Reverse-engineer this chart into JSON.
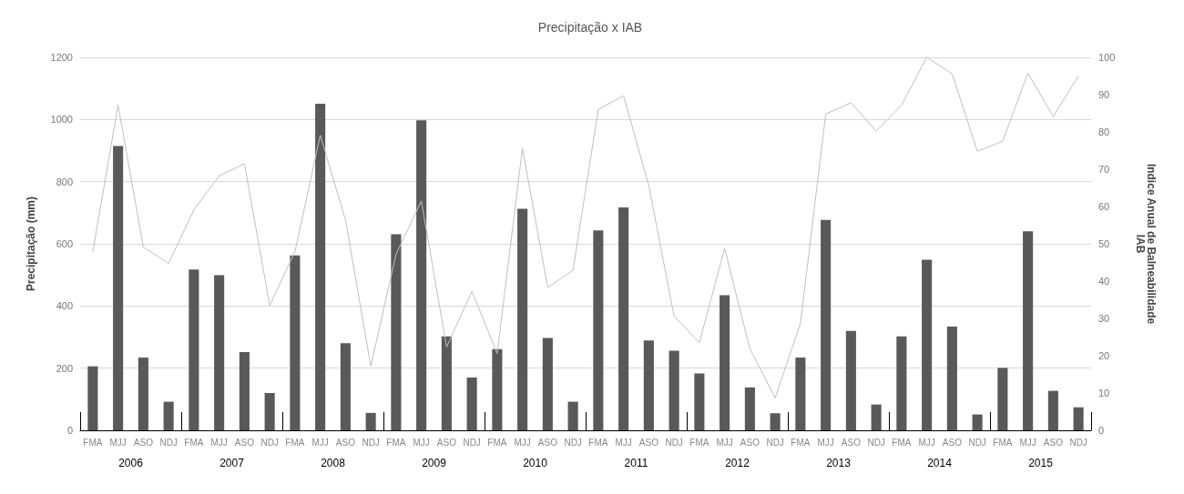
{
  "chart_data": {
    "type": "bar",
    "title": "Precipitação x IAB",
    "ylabel": "Precipitação (mm)",
    "y2label": "Indice Anual de Balneabilidade\nIAB",
    "categories": [
      "FMA",
      "MJJ",
      "ASO",
      "NDJ",
      "FMA",
      "MJJ",
      "ASO",
      "NDJ",
      "FMA",
      "MJJ",
      "ASO",
      "NDJ",
      "FMA",
      "MJJ",
      "ASO",
      "NDJ",
      "FMA",
      "MJJ",
      "ASO",
      "NDJ",
      "FMA",
      "MJJ",
      "ASO",
      "NDJ",
      "FMA",
      "MJJ",
      "ASO",
      "NDJ",
      "FMA",
      "MJJ",
      "ASO",
      "NDJ",
      "FMA",
      "MJJ",
      "ASO",
      "NDJ",
      "FMA",
      "MJJ",
      "ASO",
      "NDJ"
    ],
    "annotations": [
      "2006",
      "2007",
      "2008",
      "2009",
      "2010",
      "2011",
      "2012",
      "2013",
      "2014",
      "2015"
    ],
    "series": [
      {
        "color": "#595959",
        "values": [
          206,
          915,
          234,
          92,
          517,
          499,
          252,
          120,
          563,
          1051,
          280,
          56,
          631,
          997,
          302,
          170,
          261,
          713,
          297,
          92,
          643,
          717,
          289,
          256,
          183,
          435,
          138,
          55,
          234,
          677,
          320,
          83,
          302,
          549,
          334,
          51,
          201,
          640,
          127,
          74
        ]
      },
      {
        "type": "line",
        "axis": "y2",
        "color": "#bfbfbf",
        "values": [
          47.9,
          87.2,
          49.1,
          44.8,
          59.1,
          68.2,
          71.5,
          33.5,
          47.9,
          79.1,
          56.4,
          17.2,
          47.2,
          61.5,
          22.3,
          37.3,
          20.6,
          75.6,
          38.3,
          42.9,
          86,
          89.7,
          65.6,
          30.6,
          23.5,
          48.8,
          21.8,
          8.7,
          28.7,
          84.8,
          87.8,
          80.2,
          87.2,
          100,
          95.6,
          74.8,
          77.5,
          95.8,
          84.1,
          95
        ]
      }
    ],
    "ylim": [
      0,
      1200
    ],
    "yticks": [
      0,
      200,
      400,
      600,
      800,
      1000,
      1200
    ],
    "y2lim": [
      0,
      100
    ],
    "y2ticks": [
      0,
      10,
      20,
      30,
      40,
      50,
      60,
      70,
      80,
      90,
      100
    ],
    "grid": "y",
    "marker": "none",
    "line_style": "solid"
  }
}
